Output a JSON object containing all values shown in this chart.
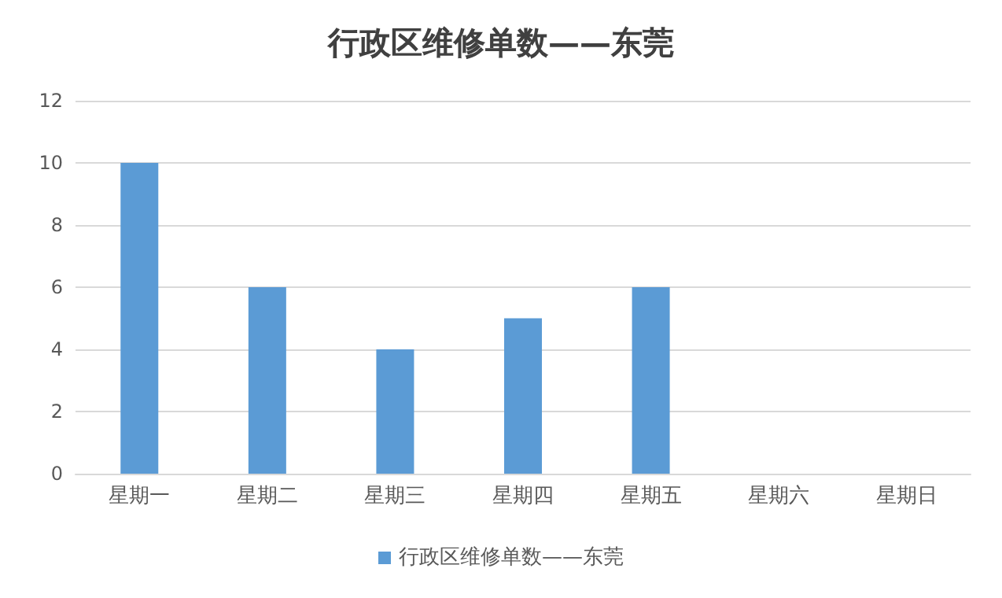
{
  "chart_data": {
    "type": "bar",
    "title": "行政区维修单数——东莞",
    "categories": [
      "星期一",
      "星期二",
      "星期三",
      "星期四",
      "星期五",
      "星期六",
      "星期日"
    ],
    "series": [
      {
        "name": "行政区维修单数——东莞",
        "color": "#5b9bd5",
        "values": [
          10,
          6,
          4,
          5,
          6,
          0,
          0
        ]
      }
    ],
    "ylim": [
      0,
      12
    ],
    "yticks": [
      0,
      2,
      4,
      6,
      8,
      10,
      12
    ],
    "grid": "y",
    "legend": "bottom"
  }
}
